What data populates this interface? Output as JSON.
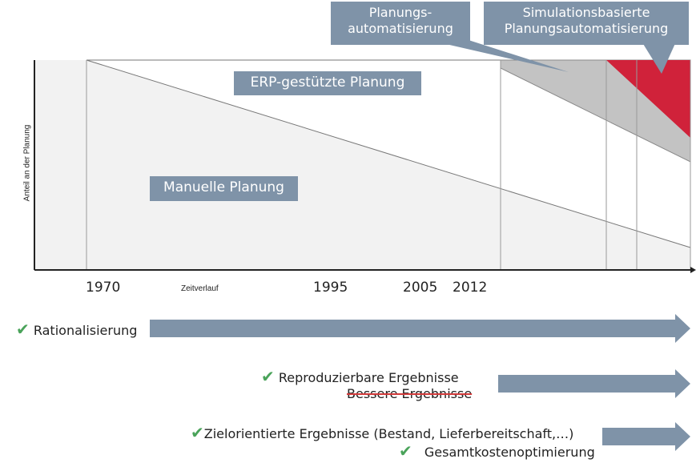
{
  "boxes": {
    "erp": "ERP-gestützte Planung",
    "manual": "Manuelle Planung",
    "auto_line1": "Planungs-",
    "auto_line2": "automatisierung",
    "sim_line1": "Simulationsbasierte",
    "sim_line2": "Planungsautomatisierung"
  },
  "axis": {
    "y_label": "Anteil an der Planung",
    "x_label": "Zeitverlauf",
    "ticks": [
      "1970",
      "1995",
      "2005",
      "2012"
    ]
  },
  "benefits": {
    "rationalisierung": "Rationalisierung",
    "reproduzierbar": "Reproduzierbare Ergebnisse",
    "bessere": "Bessere Ergebnisse",
    "zielorientiert": "Zielorientierte Ergebnisse (Bestand, Lieferbereitschaft,…)",
    "gesamtkosten": "Gesamtkostenoptimierung",
    "check": "✔"
  },
  "colors": {
    "box": "#7f93a8",
    "manual_area": "#f2f2f2",
    "auto_area": "#c3c3c3",
    "sim_area": "#d0223a",
    "arrow": "#7f93a8",
    "check": "#4aa35a"
  }
}
